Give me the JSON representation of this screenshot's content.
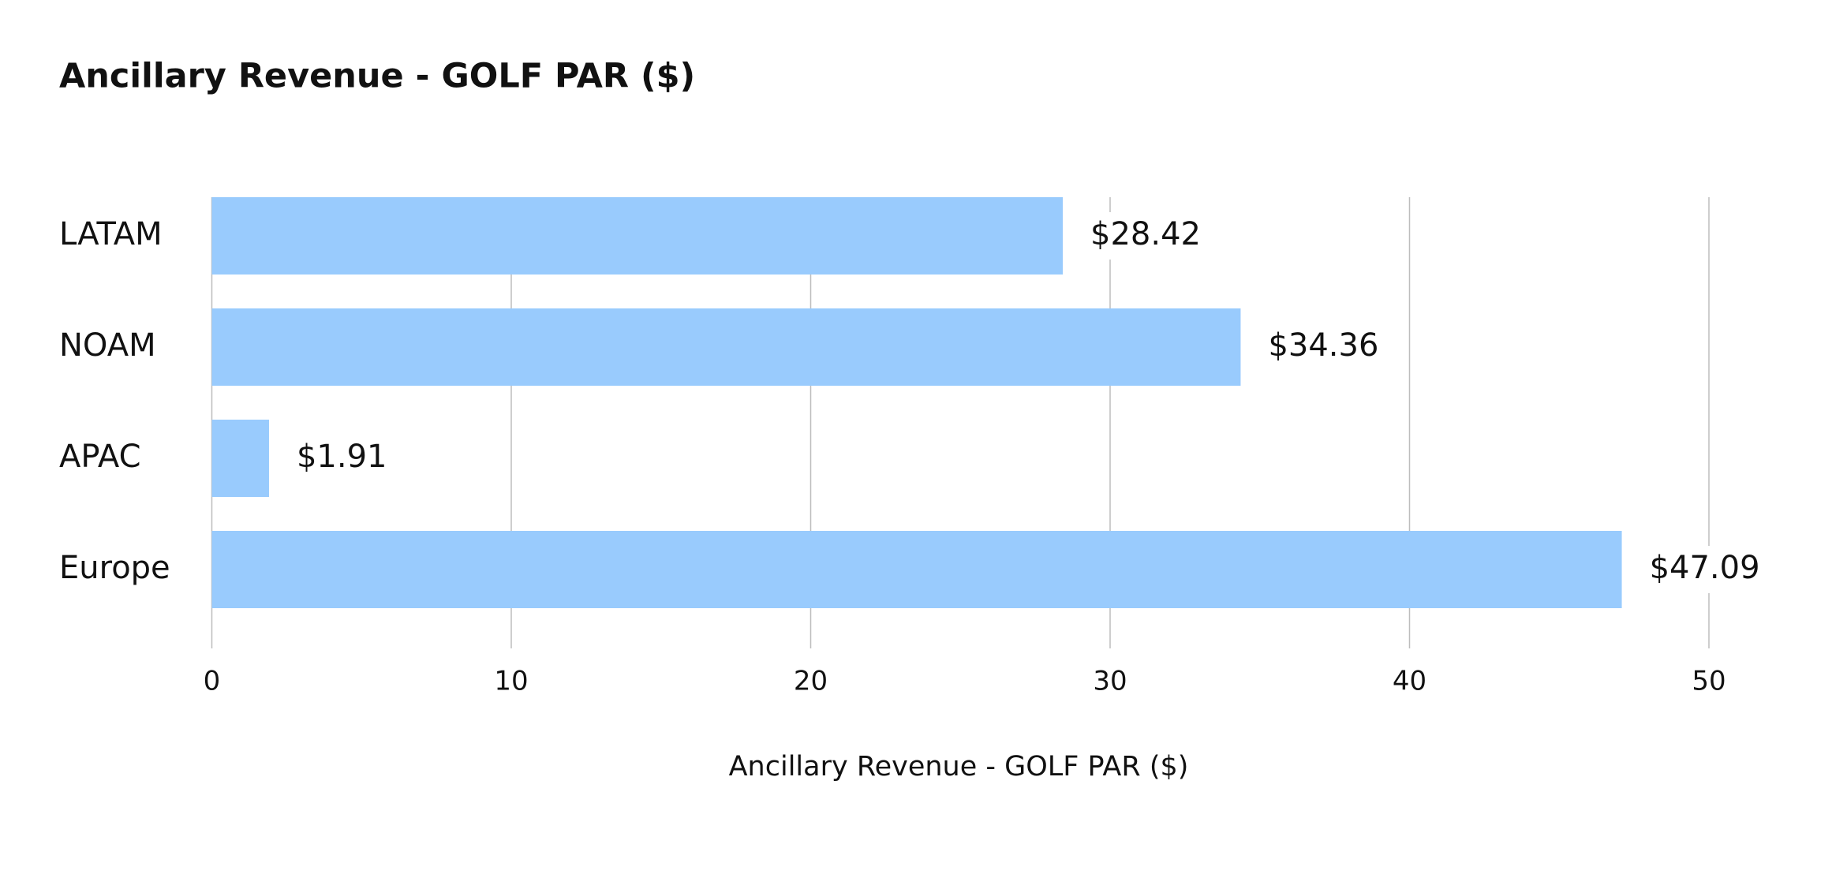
{
  "chart_data": {
    "type": "bar",
    "orientation": "horizontal",
    "title": "Ancillary Revenue - GOLF PAR ($)",
    "categories": [
      "LATAM",
      "NOAM",
      "APAC",
      "Europe"
    ],
    "values": [
      28.42,
      34.36,
      1.91,
      47.09
    ],
    "value_labels": [
      "$28.42",
      "$34.36",
      "$1.91",
      "$47.09"
    ],
    "color": "#99cbfd",
    "xlim": [
      0,
      50
    ],
    "xticks": [
      0,
      10,
      20,
      30,
      40,
      50
    ],
    "x_label": "Ancillary Revenue - GOLF PAR ($)",
    "grid": true
  }
}
